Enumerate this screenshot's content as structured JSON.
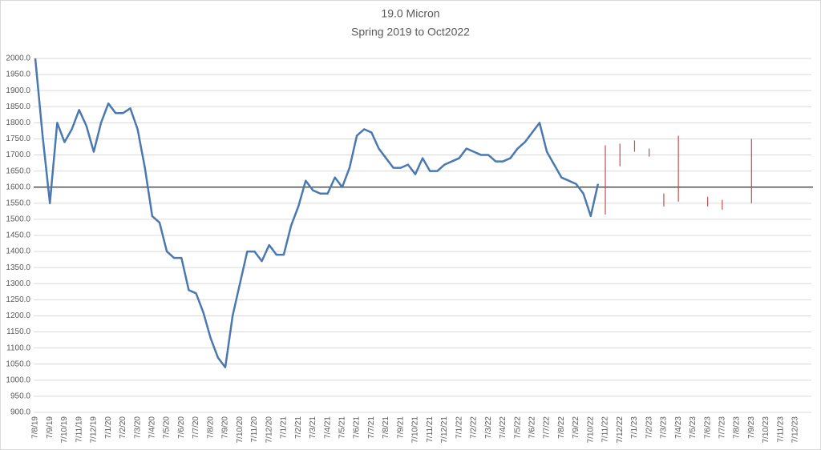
{
  "chart_data": {
    "type": "line",
    "title": "19.0 Micron",
    "subtitle": "Spring 2019 to Oct2022",
    "categories": [
      "7/8/19",
      null,
      "7/9/19",
      null,
      "7/10/19",
      null,
      "7/11/19",
      null,
      "7/12/19",
      null,
      "7/1/20",
      null,
      "7/2/20",
      null,
      "7/3/20",
      null,
      "7/4/20",
      null,
      "7/5/20",
      null,
      "7/6/20",
      null,
      "7/7/20",
      null,
      "7/8/20",
      null,
      "7/9/20",
      null,
      "7/10/20",
      null,
      "7/11/20",
      null,
      "7/12/20",
      null,
      "7/1/21",
      null,
      "7/2/21",
      null,
      "7/3/21",
      null,
      "7/4/21",
      null,
      "7/5/21",
      null,
      "7/6/21",
      null,
      "7/7/21",
      null,
      "7/8/21",
      null,
      "7/9/21",
      null,
      "7/10/21",
      null,
      "7/11/21",
      null,
      "7/12/21",
      null,
      "7/1/22",
      null,
      "7/2/22",
      null,
      "7/3/22",
      null,
      "7/4/22",
      null,
      "7/5/22",
      null,
      "7/6/22",
      null,
      "7/7/22",
      null,
      "7/8/22",
      null,
      "7/9/22",
      null,
      "7/10/22",
      null,
      "7/11/22",
      null,
      "7/12/22",
      null,
      "7/1/23",
      null,
      "7/2/23",
      null,
      "7/3/23",
      null,
      "7/4/23",
      null,
      "7/5/23",
      null,
      "7/6/23",
      null,
      "7/7/23",
      null,
      "7/8/23",
      null,
      "7/9/23",
      null,
      "7/10/23",
      null,
      "7/11/23",
      null,
      "7/12/23"
    ],
    "series": [
      {
        "color": "#4a78b0",
        "values": [
          2000,
          1760,
          1550,
          1800,
          1740,
          1780,
          1840,
          1790,
          1710,
          1800,
          1860,
          1830,
          1830,
          1845,
          1780,
          1660,
          1510,
          1490,
          1400,
          1380,
          1380,
          1280,
          1270,
          1210,
          1130,
          1070,
          1040,
          1200,
          1300,
          1400,
          1400,
          1370,
          1420,
          1390,
          1390,
          1480,
          1540,
          1620,
          1590,
          1580,
          1580,
          1630,
          1600,
          1660,
          1760,
          1780,
          1770,
          1720,
          1690,
          1660,
          1660,
          1670,
          1640,
          1690,
          1650,
          1650,
          1670,
          1680,
          1690,
          1720,
          1710,
          1700,
          1700,
          1680,
          1680,
          1690,
          1720,
          1740,
          1770,
          1800,
          1710,
          1670,
          1630,
          1620,
          1610,
          1580,
          1510,
          1610,
          null,
          null,
          null,
          null,
          null,
          null,
          null,
          null,
          null,
          null,
          null,
          null,
          null,
          null,
          null,
          null,
          null,
          null,
          null,
          null,
          null,
          null,
          null,
          null,
          null,
          null,
          null
        ]
      },
      {
        "type": "range",
        "color": "#c0504d",
        "low": [
          null,
          null,
          null,
          null,
          null,
          null,
          null,
          null,
          null,
          null,
          null,
          null,
          null,
          null,
          null,
          null,
          null,
          null,
          null,
          null,
          null,
          null,
          null,
          null,
          null,
          null,
          null,
          null,
          null,
          null,
          null,
          null,
          null,
          null,
          null,
          null,
          null,
          null,
          null,
          null,
          null,
          null,
          null,
          null,
          null,
          null,
          null,
          null,
          null,
          null,
          null,
          null,
          null,
          null,
          null,
          null,
          null,
          null,
          null,
          null,
          null,
          null,
          null,
          null,
          null,
          null,
          null,
          null,
          null,
          null,
          null,
          null,
          null,
          null,
          null,
          null,
          null,
          null,
          1515,
          null,
          1665,
          null,
          1710,
          null,
          1695,
          null,
          1540,
          null,
          1555,
          null,
          null,
          null,
          1540,
          null,
          1530,
          null,
          null,
          null,
          1550,
          null,
          null,
          null,
          null,
          null,
          null
        ],
        "high": [
          null,
          null,
          null,
          null,
          null,
          null,
          null,
          null,
          null,
          null,
          null,
          null,
          null,
          null,
          null,
          null,
          null,
          null,
          null,
          null,
          null,
          null,
          null,
          null,
          null,
          null,
          null,
          null,
          null,
          null,
          null,
          null,
          null,
          null,
          null,
          null,
          null,
          null,
          null,
          null,
          null,
          null,
          null,
          null,
          null,
          null,
          null,
          null,
          null,
          null,
          null,
          null,
          null,
          null,
          null,
          null,
          null,
          null,
          null,
          null,
          null,
          null,
          null,
          null,
          null,
          null,
          null,
          null,
          null,
          null,
          null,
          null,
          null,
          null,
          null,
          null,
          null,
          null,
          1730,
          null,
          1735,
          null,
          1745,
          null,
          1720,
          null,
          1580,
          null,
          1760,
          null,
          null,
          null,
          1570,
          null,
          1560,
          null,
          null,
          null,
          1750,
          null,
          null,
          null,
          null,
          null,
          null
        ]
      }
    ],
    "reference_line": {
      "value": 1600,
      "color": "#000000"
    },
    "ylim": [
      900,
      2000
    ],
    "yticks": [
      {
        "value": 900,
        "label": "900.0"
      },
      {
        "value": 950,
        "label": "950.0"
      },
      {
        "value": 1000,
        "label": "1000.0"
      },
      {
        "value": 1050,
        "label": "1050.0"
      },
      {
        "value": 1100,
        "label": "1100.0"
      },
      {
        "value": 1150,
        "label": "1150.0"
      },
      {
        "value": 1200,
        "label": "1200.0"
      },
      {
        "value": 1250,
        "label": "1250.0"
      },
      {
        "value": 1300,
        "label": "1300.0"
      },
      {
        "value": 1350,
        "label": "1350.0"
      },
      {
        "value": 1400,
        "label": "1400.0"
      },
      {
        "value": 1450,
        "label": "1450.0"
      },
      {
        "value": 1500,
        "label": "1500.0"
      },
      {
        "value": 1550,
        "label": "1550.0"
      },
      {
        "value": 1600,
        "label": "1600.0"
      },
      {
        "value": 1650,
        "label": "1650.0"
      },
      {
        "value": 1700,
        "label": "1700.0"
      },
      {
        "value": 1750,
        "label": "1750.0"
      },
      {
        "value": 1800,
        "label": "1800.0"
      },
      {
        "value": 1850,
        "label": "1850.0"
      },
      {
        "value": 1900,
        "label": "1900.0"
      },
      {
        "value": 1950,
        "label": "1950.0"
      },
      {
        "value": 2000,
        "label": "2000.0"
      }
    ],
    "grid": true
  }
}
